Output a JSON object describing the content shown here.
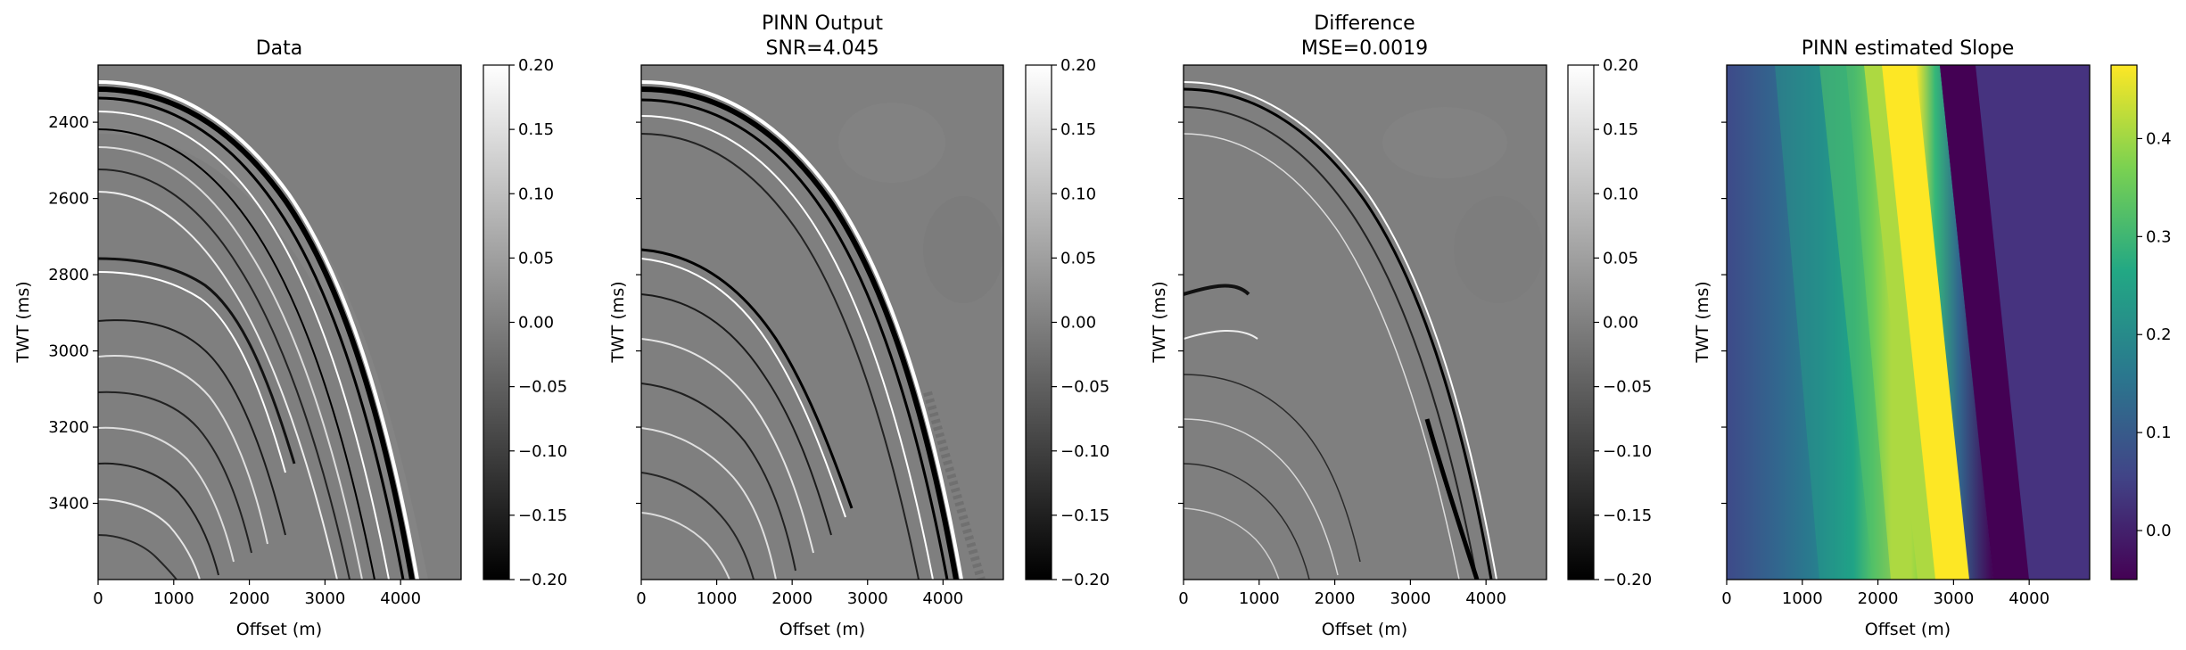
{
  "chart_data": [
    {
      "type": "heatmap",
      "title": "Data",
      "xlabel": "Offset (m)",
      "ylabel": "TWT (ms)",
      "xlim": [
        0,
        4800
      ],
      "ylim": [
        3600,
        2250
      ],
      "x_ticks": [
        0,
        1000,
        2000,
        3000,
        4000
      ],
      "y_ticks": [
        2400,
        2600,
        2800,
        3000,
        3200,
        3400
      ],
      "show_ytick_labels": true,
      "colormap": "gray",
      "colorbar": {
        "min": -0.2,
        "max": 0.2,
        "ticks": [
          "0.20",
          "0.15",
          "0.10",
          "0.05",
          "0.00",
          "−0.05",
          "−0.10",
          "−0.15",
          "−0.20"
        ]
      }
    },
    {
      "type": "heatmap",
      "title": "PINN Output",
      "subtitle": "SNR=4.045",
      "xlabel": "Offset (m)",
      "ylabel": "TWT (ms)",
      "xlim": [
        0,
        4800
      ],
      "ylim": [
        3600,
        2250
      ],
      "x_ticks": [
        0,
        1000,
        2000,
        3000,
        4000
      ],
      "y_ticks": [
        2400,
        2600,
        2800,
        3000,
        3200,
        3400
      ],
      "show_ytick_labels": false,
      "colormap": "gray",
      "colorbar": {
        "min": -0.2,
        "max": 0.2,
        "ticks": [
          "0.20",
          "0.15",
          "0.10",
          "0.05",
          "0.00",
          "−0.05",
          "−0.10",
          "−0.15",
          "−0.20"
        ]
      }
    },
    {
      "type": "heatmap",
      "title": "Difference",
      "subtitle": "MSE=0.0019",
      "xlabel": "Offset (m)",
      "ylabel": "TWT (ms)",
      "xlim": [
        0,
        4800
      ],
      "ylim": [
        3600,
        2250
      ],
      "x_ticks": [
        0,
        1000,
        2000,
        3000,
        4000
      ],
      "y_ticks": [
        2400,
        2600,
        2800,
        3000,
        3200,
        3400
      ],
      "show_ytick_labels": false,
      "colormap": "gray",
      "colorbar": {
        "min": -0.2,
        "max": 0.2,
        "ticks": [
          "0.20",
          "0.15",
          "0.10",
          "0.05",
          "0.00",
          "−0.05",
          "−0.10",
          "−0.15",
          "−0.20"
        ]
      }
    },
    {
      "type": "heatmap",
      "title": "PINN estimated Slope",
      "xlabel": "Offset (m)",
      "ylabel": "TWT (ms)",
      "xlim": [
        0,
        4800
      ],
      "ylim": [
        3600,
        2250
      ],
      "x_ticks": [
        0,
        1000,
        2000,
        3000,
        4000
      ],
      "y_ticks": [
        2400,
        2600,
        2800,
        3000,
        3200,
        3400
      ],
      "show_ytick_labels": false,
      "colormap": "viridis",
      "colorbar": {
        "min": -0.05,
        "max": 0.475,
        "ticks": [
          "0.4",
          "0.3",
          "0.2",
          "0.1",
          "0.0"
        ]
      }
    }
  ],
  "colors": {
    "seismic_background": "#7f7f7f",
    "viridis": [
      "#440154",
      "#414487",
      "#2a788e",
      "#22a884",
      "#7ad151",
      "#fde725"
    ]
  }
}
